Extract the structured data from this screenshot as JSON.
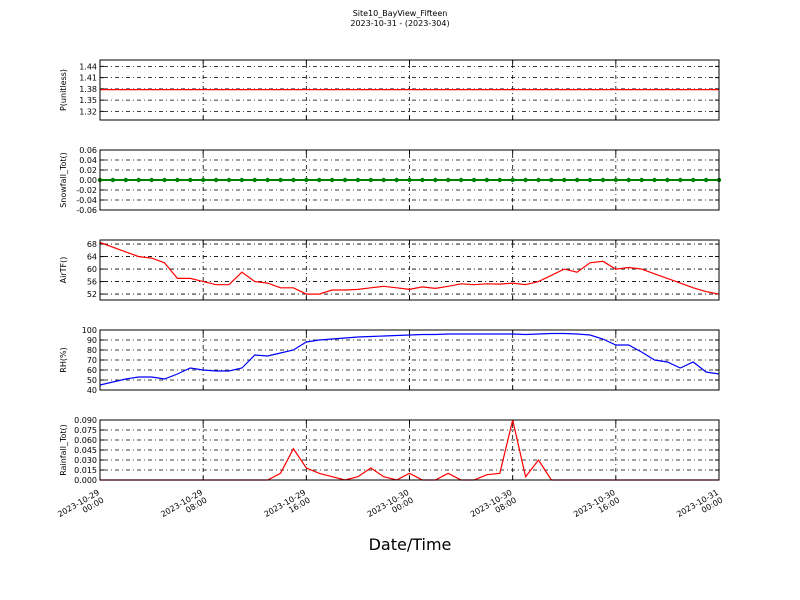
{
  "title": "Site10_BayView_Fifteen",
  "subtitle": "2023-10-31 - (2023-304)",
  "xlabel": "Date/Time",
  "chart_data": [
    {
      "type": "line",
      "ylabel": "P(unitless)",
      "color": "#ff0000",
      "grid": true,
      "xlim": [
        "2023-10-29 00:00",
        "2023-10-31 00:00"
      ],
      "ylim": [
        1.297,
        1.457
      ],
      "yticks": [
        1.32,
        1.35,
        1.38,
        1.41,
        1.44
      ],
      "x": [
        "2023-10-29 00:00",
        "2023-10-29 01:00",
        "2023-10-29 02:00",
        "2023-10-29 03:00",
        "2023-10-29 04:00",
        "2023-10-29 05:00",
        "2023-10-29 06:00",
        "2023-10-29 07:00",
        "2023-10-29 08:00",
        "2023-10-29 09:00",
        "2023-10-29 10:00",
        "2023-10-29 11:00",
        "2023-10-29 12:00",
        "2023-10-29 13:00",
        "2023-10-29 14:00",
        "2023-10-29 15:00",
        "2023-10-29 16:00",
        "2023-10-29 17:00",
        "2023-10-29 18:00",
        "2023-10-29 19:00",
        "2023-10-29 20:00",
        "2023-10-29 21:00",
        "2023-10-29 22:00",
        "2023-10-29 23:00",
        "2023-10-30 00:00",
        "2023-10-30 01:00",
        "2023-10-30 02:00",
        "2023-10-30 03:00",
        "2023-10-30 04:00",
        "2023-10-30 05:00",
        "2023-10-30 06:00",
        "2023-10-30 07:00",
        "2023-10-30 08:00",
        "2023-10-30 09:00",
        "2023-10-30 10:00",
        "2023-10-30 11:00",
        "2023-10-30 12:00",
        "2023-10-30 13:00",
        "2023-10-30 14:00",
        "2023-10-30 15:00",
        "2023-10-30 16:00",
        "2023-10-30 17:00",
        "2023-10-30 18:00",
        "2023-10-30 19:00",
        "2023-10-30 20:00",
        "2023-10-30 21:00",
        "2023-10-30 22:00",
        "2023-10-30 23:00",
        "2023-10-31 00:00"
      ],
      "values": [
        1.378,
        1.378,
        1.378,
        1.378,
        1.378,
        1.378,
        1.378,
        1.378,
        1.378,
        1.378,
        1.378,
        1.378,
        1.378,
        1.378,
        1.378,
        1.378,
        1.378,
        1.378,
        1.378,
        1.378,
        1.378,
        1.378,
        1.378,
        1.378,
        1.378,
        1.378,
        1.378,
        1.378,
        1.378,
        1.378,
        1.378,
        1.378,
        1.378,
        1.378,
        1.378,
        1.378,
        1.378,
        1.378,
        1.378,
        1.378,
        1.378,
        1.378,
        1.378,
        1.378,
        1.378,
        1.378,
        1.378,
        1.378,
        1.378
      ]
    },
    {
      "type": "line",
      "ylabel": "Snowfall_Tot()",
      "color": "#008000",
      "marker": true,
      "grid": true,
      "xlim": [
        "2023-10-29 00:00",
        "2023-10-31 00:00"
      ],
      "ylim": [
        -0.06,
        0.06
      ],
      "yticks": [
        -0.06,
        -0.04,
        -0.02,
        {
          "value": 0,
          "label": "0.00"
        },
        0.02,
        0.04,
        0.06
      ],
      "x": [
        "2023-10-29 00:00",
        "2023-10-29 01:00",
        "2023-10-29 02:00",
        "2023-10-29 03:00",
        "2023-10-29 04:00",
        "2023-10-29 05:00",
        "2023-10-29 06:00",
        "2023-10-29 07:00",
        "2023-10-29 08:00",
        "2023-10-29 09:00",
        "2023-10-29 10:00",
        "2023-10-29 11:00",
        "2023-10-29 12:00",
        "2023-10-29 13:00",
        "2023-10-29 14:00",
        "2023-10-29 15:00",
        "2023-10-29 16:00",
        "2023-10-29 17:00",
        "2023-10-29 18:00",
        "2023-10-29 19:00",
        "2023-10-29 20:00",
        "2023-10-29 21:00",
        "2023-10-29 22:00",
        "2023-10-29 23:00",
        "2023-10-30 00:00",
        "2023-10-30 01:00",
        "2023-10-30 02:00",
        "2023-10-30 03:00",
        "2023-10-30 04:00",
        "2023-10-30 05:00",
        "2023-10-30 06:00",
        "2023-10-30 07:00",
        "2023-10-30 08:00",
        "2023-10-30 09:00",
        "2023-10-30 10:00",
        "2023-10-30 11:00",
        "2023-10-30 12:00",
        "2023-10-30 13:00",
        "2023-10-30 14:00",
        "2023-10-30 15:00",
        "2023-10-30 16:00",
        "2023-10-30 17:00",
        "2023-10-30 18:00",
        "2023-10-30 19:00",
        "2023-10-30 20:00",
        "2023-10-30 21:00",
        "2023-10-30 22:00",
        "2023-10-30 23:00",
        "2023-10-31 00:00"
      ],
      "values": [
        0,
        0,
        0,
        0,
        0,
        0,
        0,
        0,
        0,
        0,
        0,
        0,
        0,
        0,
        0,
        0,
        0,
        0,
        0,
        0,
        0,
        0,
        0,
        0,
        0,
        0,
        0,
        0,
        0,
        0,
        0,
        0,
        0,
        0,
        0,
        0,
        0,
        0,
        0,
        0,
        0,
        0,
        0,
        0,
        0,
        0,
        0,
        0,
        0
      ]
    },
    {
      "type": "line",
      "ylabel": "AirTF()",
      "color": "#ff0000",
      "grid": true,
      "xlim": [
        "2023-10-29 00:00",
        "2023-10-31 00:00"
      ],
      "ylim": [
        50.1,
        69.3
      ],
      "yticks": [
        52,
        56,
        60,
        64,
        68
      ],
      "x": [
        "2023-10-29 00:00",
        "2023-10-29 01:00",
        "2023-10-29 02:00",
        "2023-10-29 03:00",
        "2023-10-29 04:00",
        "2023-10-29 05:00",
        "2023-10-29 06:00",
        "2023-10-29 07:00",
        "2023-10-29 08:00",
        "2023-10-29 09:00",
        "2023-10-29 10:00",
        "2023-10-29 11:00",
        "2023-10-29 12:00",
        "2023-10-29 13:00",
        "2023-10-29 14:00",
        "2023-10-29 15:00",
        "2023-10-29 16:00",
        "2023-10-29 17:00",
        "2023-10-29 18:00",
        "2023-10-29 19:00",
        "2023-10-29 20:00",
        "2023-10-29 21:00",
        "2023-10-29 22:00",
        "2023-10-29 23:00",
        "2023-10-30 00:00",
        "2023-10-30 01:00",
        "2023-10-30 02:00",
        "2023-10-30 03:00",
        "2023-10-30 04:00",
        "2023-10-30 05:00",
        "2023-10-30 06:00",
        "2023-10-30 07:00",
        "2023-10-30 08:00",
        "2023-10-30 09:00",
        "2023-10-30 10:00",
        "2023-10-30 11:00",
        "2023-10-30 12:00",
        "2023-10-30 13:00",
        "2023-10-30 14:00",
        "2023-10-30 15:00",
        "2023-10-30 16:00",
        "2023-10-30 17:00",
        "2023-10-30 18:00",
        "2023-10-30 19:00",
        "2023-10-30 20:00",
        "2023-10-30 21:00",
        "2023-10-30 22:00",
        "2023-10-30 23:00",
        "2023-10-31 00:00"
      ],
      "values": [
        68.5,
        67,
        65.5,
        64,
        63.5,
        62,
        57,
        57,
        56,
        55,
        55,
        59,
        56,
        55.5,
        54,
        54,
        52,
        52,
        53.3,
        53.3,
        53.5,
        54,
        54.5,
        54,
        53.5,
        54.3,
        53.8,
        54.5,
        55.3,
        55,
        55.3,
        55.2,
        55.5,
        55,
        56,
        58,
        60,
        59,
        62,
        62.5,
        60,
        60.5,
        60,
        58.5,
        57,
        55.5,
        54,
        52.8,
        52
      ]
    },
    {
      "type": "line",
      "ylabel": "RH(%)",
      "color": "#0000ff",
      "grid": true,
      "xlim": [
        "2023-10-29 00:00",
        "2023-10-31 00:00"
      ],
      "ylim": [
        40,
        100
      ],
      "yticks": [
        40,
        50,
        60,
        70,
        80,
        90,
        100
      ],
      "x": [
        "2023-10-29 00:00",
        "2023-10-29 01:00",
        "2023-10-29 02:00",
        "2023-10-29 03:00",
        "2023-10-29 04:00",
        "2023-10-29 05:00",
        "2023-10-29 06:00",
        "2023-10-29 07:00",
        "2023-10-29 08:00",
        "2023-10-29 09:00",
        "2023-10-29 10:00",
        "2023-10-29 11:00",
        "2023-10-29 12:00",
        "2023-10-29 13:00",
        "2023-10-29 14:00",
        "2023-10-29 15:00",
        "2023-10-29 16:00",
        "2023-10-29 17:00",
        "2023-10-29 18:00",
        "2023-10-29 19:00",
        "2023-10-29 20:00",
        "2023-10-29 21:00",
        "2023-10-29 22:00",
        "2023-10-29 23:00",
        "2023-10-30 00:00",
        "2023-10-30 01:00",
        "2023-10-30 02:00",
        "2023-10-30 03:00",
        "2023-10-30 04:00",
        "2023-10-30 05:00",
        "2023-10-30 06:00",
        "2023-10-30 07:00",
        "2023-10-30 08:00",
        "2023-10-30 09:00",
        "2023-10-30 10:00",
        "2023-10-30 11:00",
        "2023-10-30 12:00",
        "2023-10-30 13:00",
        "2023-10-30 14:00",
        "2023-10-30 15:00",
        "2023-10-30 16:00",
        "2023-10-30 17:00",
        "2023-10-30 18:00",
        "2023-10-30 19:00",
        "2023-10-30 20:00",
        "2023-10-30 21:00",
        "2023-10-30 22:00",
        "2023-10-30 23:00",
        "2023-10-31 00:00"
      ],
      "values": [
        45,
        48,
        51,
        53,
        53,
        51,
        56,
        62,
        60,
        59,
        59,
        62,
        75,
        74,
        77,
        80,
        88,
        90,
        91,
        92,
        93,
        93.5,
        94,
        94.5,
        95,
        95.5,
        95.5,
        96,
        96,
        96,
        96,
        96,
        96,
        95.5,
        96,
        96.5,
        96.5,
        96,
        95,
        91,
        85,
        85,
        78,
        70,
        68,
        62,
        68,
        58,
        56
      ]
    },
    {
      "type": "line",
      "ylabel": "Rainfall_Tot()",
      "color": "#ff0000",
      "grid": true,
      "xlim": [
        "2023-10-29 00:00",
        "2023-10-31 00:00"
      ],
      "ylim": [
        0,
        0.09
      ],
      "yticks": [
        {
          "value": 0,
          "label": "0.000"
        },
        {
          "value": 0.015,
          "label": "0.015"
        },
        {
          "value": 0.03,
          "label": "0.030"
        },
        {
          "value": 0.045,
          "label": "0.045"
        },
        {
          "value": 0.06,
          "label": "0.060"
        },
        {
          "value": 0.075,
          "label": "0.075"
        },
        {
          "value": 0.09,
          "label": "0.090"
        }
      ],
      "xticks": [
        {
          "value": "2023-10-29 00:00",
          "label": "2023-10-29\n00:00"
        },
        {
          "value": "2023-10-29 08:00",
          "label": "2023-10-29\n08:00"
        },
        {
          "value": "2023-10-29 16:00",
          "label": "2023-10-29\n16:00"
        },
        {
          "value": "2023-10-30 00:00",
          "label": "2023-10-30\n00:00"
        },
        {
          "value": "2023-10-30 08:00",
          "label": "2023-10-30\n08:00"
        },
        {
          "value": "2023-10-30 16:00",
          "label": "2023-10-30\n16:00"
        },
        {
          "value": "2023-10-31 00:00",
          "label": "2023-10-31\n00:00"
        }
      ],
      "x": [
        "2023-10-29 00:00",
        "2023-10-29 01:00",
        "2023-10-29 02:00",
        "2023-10-29 03:00",
        "2023-10-29 04:00",
        "2023-10-29 05:00",
        "2023-10-29 06:00",
        "2023-10-29 07:00",
        "2023-10-29 08:00",
        "2023-10-29 09:00",
        "2023-10-29 10:00",
        "2023-10-29 11:00",
        "2023-10-29 12:00",
        "2023-10-29 13:00",
        "2023-10-29 14:00",
        "2023-10-29 15:00",
        "2023-10-29 16:00",
        "2023-10-29 17:00",
        "2023-10-29 18:00",
        "2023-10-29 19:00",
        "2023-10-29 20:00",
        "2023-10-29 21:00",
        "2023-10-29 22:00",
        "2023-10-29 23:00",
        "2023-10-30 00:00",
        "2023-10-30 01:00",
        "2023-10-30 02:00",
        "2023-10-30 03:00",
        "2023-10-30 04:00",
        "2023-10-30 05:00",
        "2023-10-30 06:00",
        "2023-10-30 07:00",
        "2023-10-30 08:00",
        "2023-10-30 09:00",
        "2023-10-30 10:00",
        "2023-10-30 11:00",
        "2023-10-30 12:00",
        "2023-10-30 13:00",
        "2023-10-30 14:00",
        "2023-10-30 15:00",
        "2023-10-30 16:00",
        "2023-10-30 17:00",
        "2023-10-30 18:00",
        "2023-10-30 19:00",
        "2023-10-30 20:00",
        "2023-10-30 21:00",
        "2023-10-30 22:00",
        "2023-10-30 23:00",
        "2023-10-31 00:00"
      ],
      "values": [
        0,
        0,
        0,
        0,
        0,
        0,
        0,
        0,
        0,
        0,
        0,
        0,
        0,
        0,
        0.01,
        0.047,
        0.018,
        0.01,
        0.005,
        0,
        0.005,
        0.018,
        0.005,
        0,
        0.01,
        0,
        0,
        0.01,
        0,
        0,
        0.008,
        0.01,
        0.09,
        0.005,
        0.03,
        0,
        0,
        0,
        0,
        0,
        0,
        0,
        0,
        0,
        0,
        0,
        0,
        0,
        0
      ]
    }
  ]
}
